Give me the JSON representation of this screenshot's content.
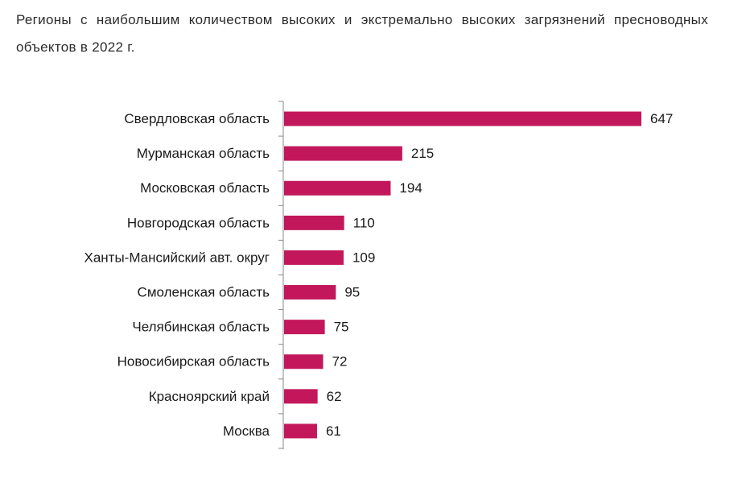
{
  "chart_data": {
    "type": "bar",
    "orientation": "horizontal",
    "title": "Регионы с наибольшим количеством высоких и экстремально высоких загрязнений пресноводных объектов в 2022 г.",
    "categories": [
      "Свердловская область",
      "Мурманская область",
      "Московская область",
      "Новгородская область",
      "Ханты-Мансийский авт. округ",
      "Смоленская область",
      "Челябинская область",
      "Новосибирская область",
      "Красноярский край",
      "Москва"
    ],
    "values": [
      647,
      215,
      194,
      110,
      109,
      95,
      75,
      72,
      62,
      61
    ],
    "color": "#c2185b"
  }
}
